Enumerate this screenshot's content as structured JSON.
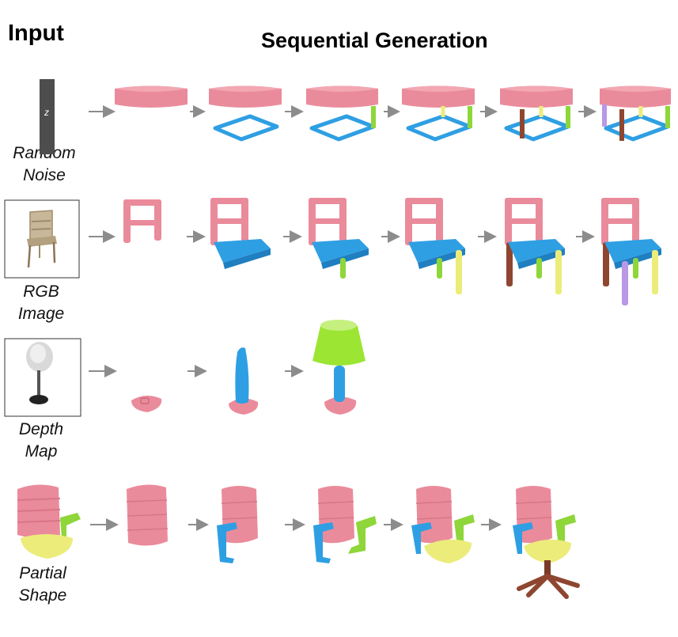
{
  "headers": {
    "input": "Input",
    "sequential": "Sequential Generation"
  },
  "rows": [
    {
      "id": "random-noise",
      "label_line1": "Random",
      "label_line2": "Noise",
      "noise_symbol": "z"
    },
    {
      "id": "rgb-image",
      "label_line1": "RGB",
      "label_line2": "Image"
    },
    {
      "id": "depth-map",
      "label_line1": "Depth",
      "label_line2": "Map"
    },
    {
      "id": "partial-shape",
      "label_line1": "Partial",
      "label_line2": "Shape"
    }
  ],
  "colors": {
    "pink": "#ea8b9b",
    "blue": "#2f9fe3",
    "green": "#8ed63a",
    "yellow": "#ecec7a",
    "brown": "#8e4630",
    "purple": "#b998e6",
    "lime": "#9ce533",
    "arrow": "#8c8c8c"
  }
}
